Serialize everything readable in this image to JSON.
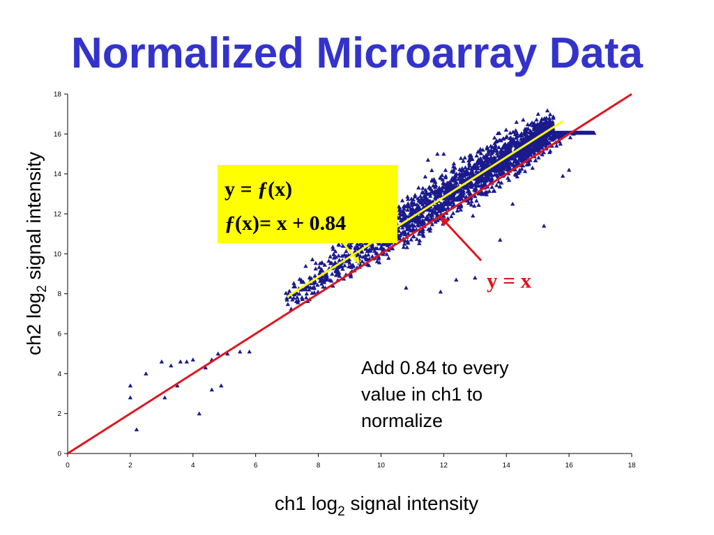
{
  "title": "Normalized Microarray Data",
  "chart_data": {
    "type": "scatter",
    "xlabel": {
      "main": "ch1 log",
      "sub": "2",
      "rest": " signal intensity"
    },
    "ylabel": {
      "main": "ch2 log",
      "sub": "2",
      "rest": " signal intensity"
    },
    "xlim": [
      0,
      18
    ],
    "ylim": [
      0,
      18
    ],
    "xticks": [
      "0",
      "2",
      "4",
      "6",
      "8",
      "10",
      "12",
      "14",
      "16",
      "18"
    ],
    "yticks": [
      "0",
      "2",
      "4",
      "6",
      "8",
      "10",
      "12",
      "14",
      "16",
      "18"
    ],
    "grid": false,
    "marker": "triangle",
    "colors": {
      "points": "#1a1a8c",
      "identity_line": "#e0141e",
      "fit_line": "#ffff00",
      "box": "#ffff00",
      "title": "#3333cc"
    },
    "outlier_points": [
      [
        2.0,
        3.4
      ],
      [
        2.0,
        2.8
      ],
      [
        2.2,
        1.2
      ],
      [
        2.5,
        4.0
      ],
      [
        3.0,
        4.6
      ],
      [
        3.1,
        2.8
      ],
      [
        3.3,
        4.4
      ],
      [
        3.5,
        3.4
      ],
      [
        3.6,
        4.6
      ],
      [
        3.8,
        4.6
      ],
      [
        4.0,
        4.7
      ],
      [
        4.2,
        2.0
      ],
      [
        4.4,
        4.3
      ],
      [
        4.6,
        4.7
      ],
      [
        4.6,
        3.2
      ],
      [
        4.8,
        5.0
      ],
      [
        4.9,
        3.4
      ],
      [
        5.1,
        5.0
      ],
      [
        5.5,
        5.1
      ],
      [
        5.8,
        5.1
      ],
      [
        7.0,
        7.7
      ],
      [
        8.5,
        9.8
      ],
      [
        12.5,
        14.0
      ],
      [
        11.8,
        15.0
      ],
      [
        12.0,
        15.0
      ],
      [
        11.5,
        14.7
      ],
      [
        13.8,
        10.7
      ],
      [
        14.2,
        12.5
      ],
      [
        11.9,
        8.1
      ],
      [
        10.8,
        8.3
      ],
      [
        12.4,
        8.7
      ],
      [
        13.0,
        8.8
      ],
      [
        15.8,
        13.9
      ],
      [
        16.0,
        14.2
      ],
      [
        15.2,
        11.4
      ]
    ],
    "dense_cloud": {
      "x_start": 6.8,
      "x_end": 16.8,
      "relation": "y = x + 0.84",
      "spread": 0.45,
      "count": 2600
    },
    "identity_line": {
      "x": [
        0,
        18
      ],
      "y": [
        0,
        18
      ]
    },
    "fit_line": {
      "x": [
        7.0,
        15.8
      ],
      "intercept": 0.84
    },
    "equation_box": {
      "line1_prefix": "y = ",
      "f": "ƒ",
      "line1_suffix": "(x)",
      "line2": "(x)= x + 0.84"
    },
    "identity_label": "y = x",
    "note_lines": [
      "Add 0.84 to every",
      "value in ch1 to",
      "normalize"
    ]
  }
}
